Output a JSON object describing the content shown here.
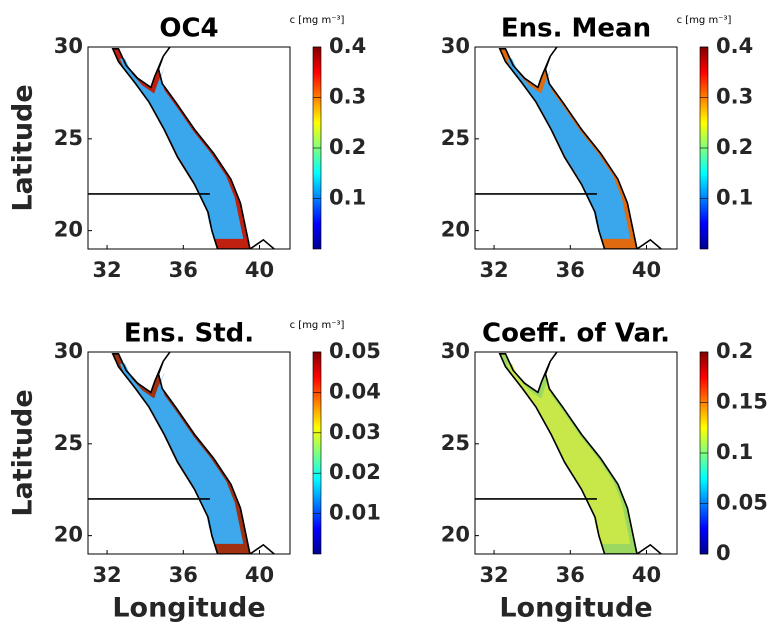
{
  "chart_data": [
    {
      "type": "map",
      "title": "OC4",
      "ylabel": "Latitude",
      "xlim": [
        31,
        41.6
      ],
      "ylim": [
        19,
        30
      ],
      "xticks": [
        32,
        36,
        40
      ],
      "yticks": [
        20,
        25,
        30
      ],
      "colormap": "jet",
      "colorbar": {
        "label": "c [mg m⁻³]",
        "lim": [
          0,
          0.4
        ],
        "ticks": [
          0.1,
          0.2,
          0.3,
          0.4
        ]
      }
    },
    {
      "type": "map",
      "title": "Ens. Mean",
      "xlim": [
        31,
        41.6
      ],
      "ylim": [
        19,
        30
      ],
      "xticks": [
        32,
        36,
        40
      ],
      "yticks": [
        20,
        25,
        30
      ],
      "colormap": "jet",
      "colorbar": {
        "label": "c [mg m⁻³]",
        "lim": [
          0,
          0.4
        ],
        "ticks": [
          0.1,
          0.2,
          0.3,
          0.4
        ]
      }
    },
    {
      "type": "map",
      "title": "Ens. Std.",
      "ylabel": "Latitude",
      "xlabel": "Longitude",
      "xlim": [
        31,
        41.6
      ],
      "ylim": [
        19,
        30
      ],
      "xticks": [
        32,
        36,
        40
      ],
      "yticks": [
        20,
        25,
        30
      ],
      "colormap": "jet",
      "colorbar": {
        "label": "c [mg m⁻³]",
        "lim": [
          0,
          0.05
        ],
        "ticks": [
          0.01,
          0.02,
          0.03,
          0.04,
          0.05
        ]
      }
    },
    {
      "type": "map",
      "title": "Coeff. of Var.",
      "xlabel": "Longitude",
      "xlim": [
        31,
        41.6
      ],
      "ylim": [
        19,
        30
      ],
      "xticks": [
        32,
        36,
        40
      ],
      "yticks": [
        20,
        25,
        30
      ],
      "colormap": "jet",
      "colorbar": {
        "lim": [
          0,
          0.2
        ],
        "ticks": [
          0,
          0.05,
          0.1,
          0.15,
          0.2
        ]
      }
    }
  ]
}
